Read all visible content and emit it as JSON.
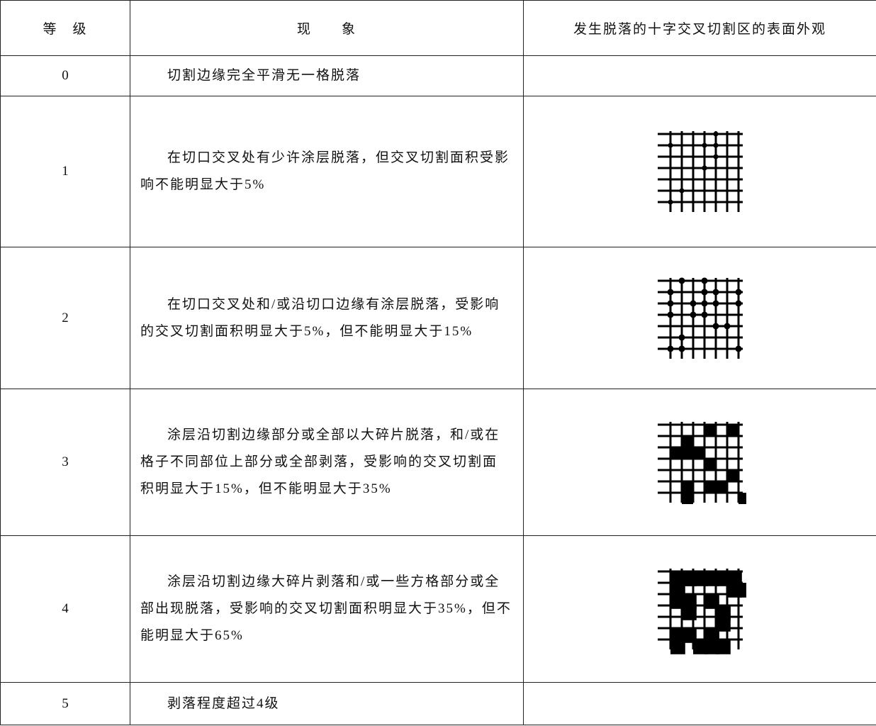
{
  "table": {
    "header": [
      "等　级",
      "现　　象",
      "发生脱落的十字交叉切割区的表面外观"
    ],
    "rows": [
      [
        "0",
        "切割边缘完全平滑无一格脱落"
      ],
      [
        "1",
        "在切口交叉处有少许涂层脱落，但交叉切割面积受影响不能明显大于5%"
      ],
      [
        "2",
        "在切口交叉处和/或沿切口边缘有涂层脱落，受影响的交叉切割面积明显大于5%，但不能明显大于15%"
      ],
      [
        "3",
        "涂层沿切割边缘部分或全部以大碎片脱落，和/或在格子不同部位上部分或全部剥落，受影响的交叉切割面积明显大于15%，但不能明显大于35%"
      ],
      [
        "4",
        "涂层沿切割边缘大碎片剥落和/或一些方格部分或全部出现脱落，受影响的交叉切割面积明显大于35%，但不能明显大于65%"
      ],
      [
        "5",
        "剥落程度超过4级"
      ]
    ]
  }
}
